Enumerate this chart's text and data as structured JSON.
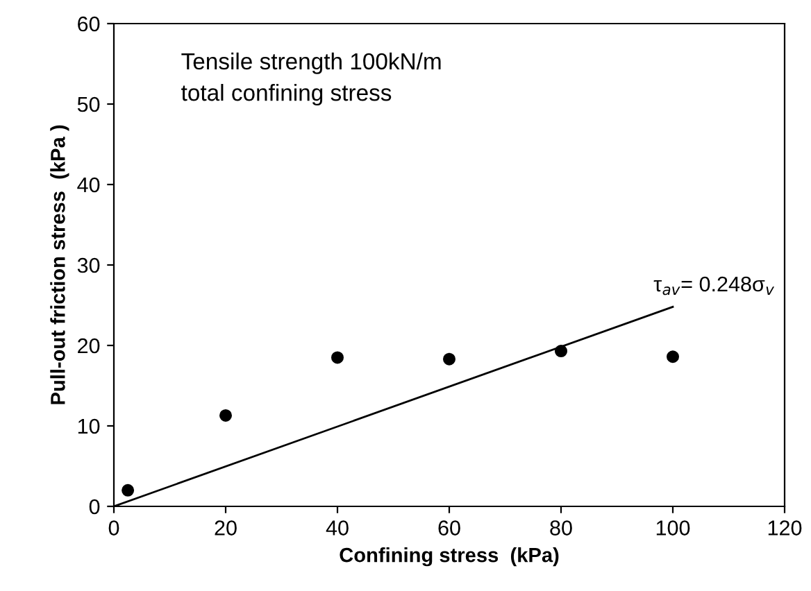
{
  "chart_data": {
    "type": "scatter",
    "xlabel": "Confining stress  (kPa)",
    "ylabel": "Pull-out friction stress  (kPa )",
    "annotations": [
      "Tensile strength 100kN/m",
      "total confining stress",
      {
        "text": "τ$_{av}$= 0.248σ$_{v}$",
        "x": 100,
        "y": 24.8
      }
    ],
    "series": [
      {
        "color": "#000000",
        "marker": "circle",
        "x": [
          2.5,
          20,
          40,
          60,
          80,
          100
        ],
        "values": [
          2,
          11.3,
          18.5,
          18.3,
          19.3,
          18.6
        ]
      },
      {
        "type": "line",
        "color": "#000000",
        "marker": "none",
        "line_style": "solid",
        "x": [
          0,
          100
        ],
        "values": [
          0,
          24.8
        ]
      }
    ],
    "xlim": [
      0,
      120
    ],
    "xticks": [
      0,
      20,
      40,
      60,
      80,
      100,
      120
    ],
    "ylim": [
      0,
      60
    ],
    "yticks": [
      0,
      10,
      20,
      30,
      40,
      50,
      60
    ],
    "grid": false,
    "legend": false
  }
}
